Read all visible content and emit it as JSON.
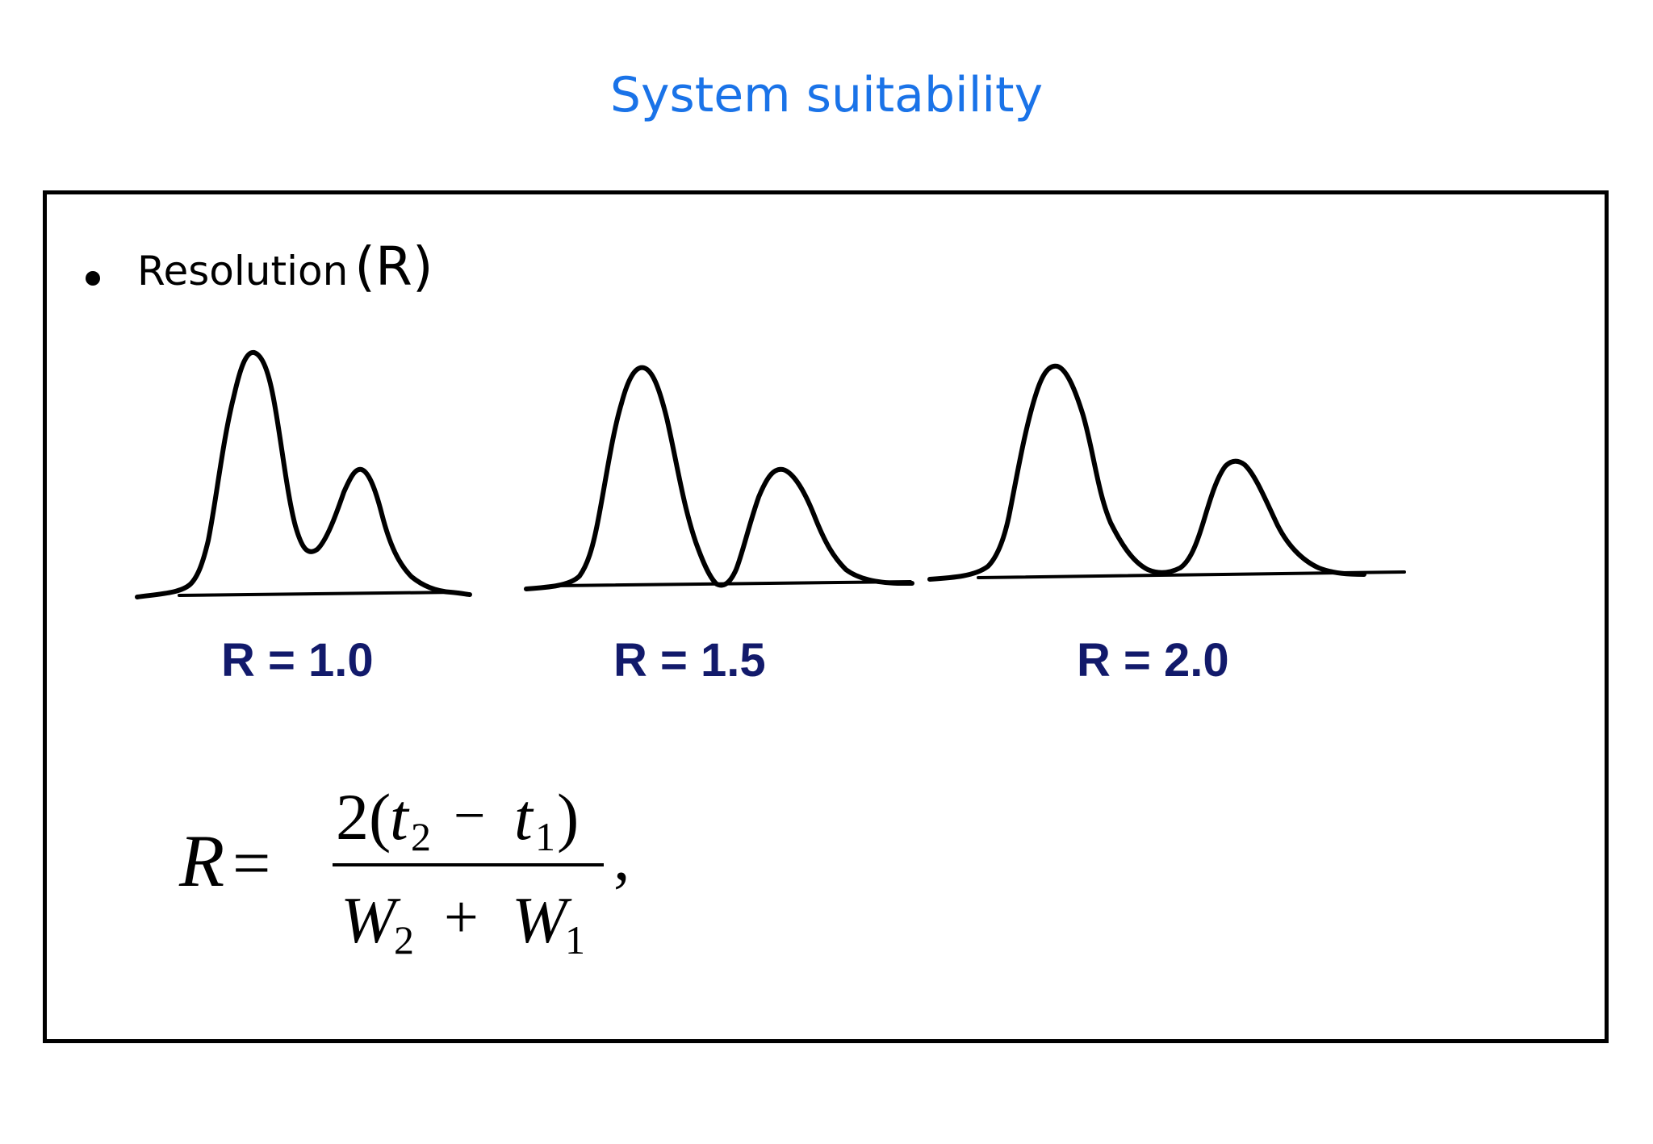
{
  "title": "System suitability",
  "bullet": {
    "term": "Resolution",
    "symbol": "(R)"
  },
  "panels": [
    {
      "label": "R = 1.0",
      "resolution": 1.0
    },
    {
      "label": "R = 1.5",
      "resolution": 1.5
    },
    {
      "label": "R = 2.0",
      "resolution": 2.0
    }
  ],
  "formula": {
    "lhs": "R",
    "equals": "=",
    "num_coef": "2(",
    "t": "t",
    "sub2": "2",
    "minus": "−",
    "sub1": "1",
    "close": ")",
    "W": "W",
    "plus": "+",
    "comma": ","
  }
}
